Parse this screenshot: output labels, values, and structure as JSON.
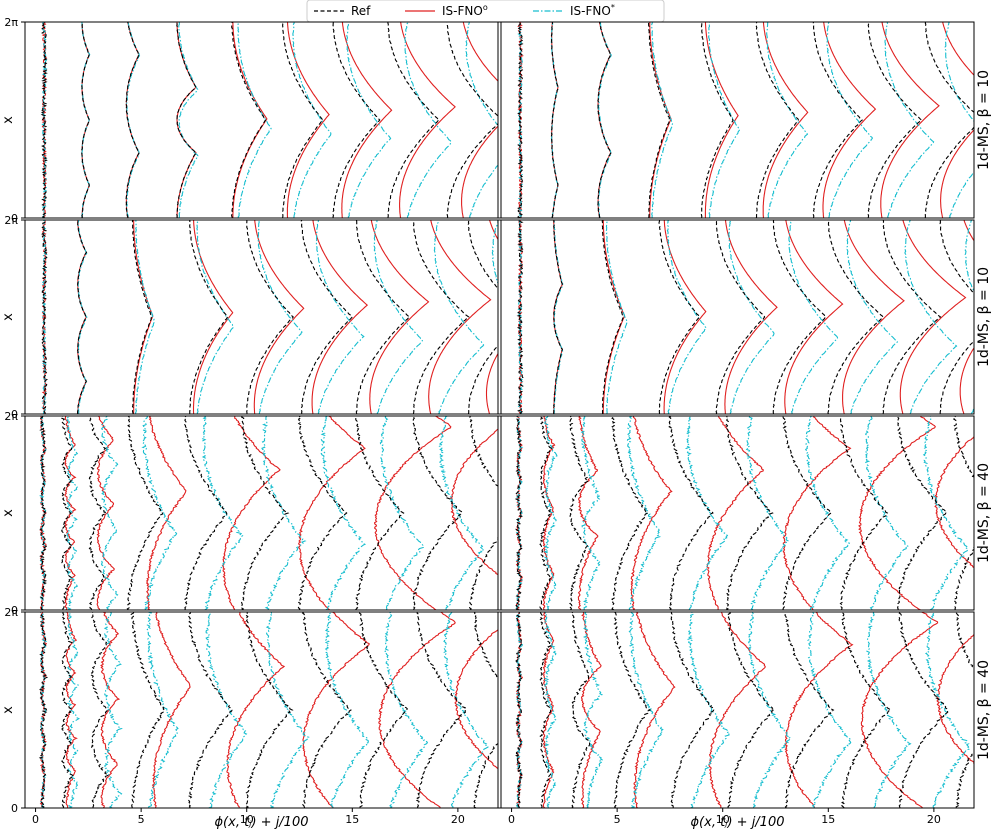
{
  "chart_data": {
    "type": "line",
    "legend": {
      "placement": "top-center",
      "entries": [
        {
          "label": "Ref",
          "sup": "",
          "color": "#000000",
          "dash": "dashed"
        },
        {
          "label": "IS-FNO",
          "sup": "o",
          "color": "#e02020",
          "dash": "solid"
        },
        {
          "label": "IS-FNO",
          "sup": "*",
          "color": "#17becf",
          "dash": "dashdot"
        }
      ]
    },
    "xlabel": "ϕ(x, tⱼ) + j/100",
    "ylabel": "x",
    "y_ticks": [
      "0",
      "2π"
    ],
    "x_ticks": [
      "0",
      "5",
      "10",
      "15",
      "20"
    ],
    "xlim": [
      -0.5,
      21.9
    ],
    "ylim": [
      0,
      6.283
    ],
    "grid": false,
    "columns": 2,
    "rows": [
      {
        "label": "1d-MS, β = 10",
        "beta": 10
      },
      {
        "label": "1d-MS, β = 10",
        "beta": 10
      },
      {
        "label": "1d-MS, β = 40",
        "beta": 40
      },
      {
        "label": "1d-MS, β = 40",
        "beta": 40
      }
    ],
    "panels": [
      {
        "row": 0,
        "col": 0,
        "offsets": [
          0.4,
          2.2,
          4.3,
          6.7,
          9.3,
          11.7,
          14.1,
          16.7,
          19.5
        ],
        "cusps": [
          [
            1,
            5
          ],
          [
            1,
            3,
            5
          ],
          [
            2,
            5
          ],
          [
            2,
            4
          ],
          [
            3
          ],
          [
            3
          ],
          [
            3
          ],
          [
            3
          ],
          [
            3
          ]
        ],
        "amps": [
          0.05,
          0.35,
          0.6,
          0.9,
          1.6,
          1.9,
          2.2,
          2.4,
          2.6
        ],
        "err_red": [
          0,
          0,
          0,
          0,
          0.1,
          0.5,
          0.9,
          1.2,
          1.5
        ],
        "err_cyan": [
          0,
          0,
          0.05,
          0.2,
          0.6,
          1.0,
          1.3,
          1.6,
          1.8
        ]
      },
      {
        "row": 0,
        "col": 1,
        "offsets": [
          0.4,
          1.9,
          4.1,
          6.5,
          9.0,
          11.6,
          14.3,
          16.9,
          19.6
        ],
        "cusps": [
          [
            1,
            5
          ],
          [
            1,
            4
          ],
          [
            2,
            5
          ],
          [
            3
          ],
          [
            3
          ],
          [
            3
          ],
          [
            3
          ],
          [
            3
          ],
          [
            3
          ]
        ],
        "amps": [
          0.05,
          0.3,
          0.6,
          1.0,
          1.5,
          2.0,
          2.3,
          2.5,
          2.7
        ],
        "err_red": [
          0,
          0,
          0,
          0.1,
          0.4,
          0.7,
          1.0,
          1.3,
          1.6
        ],
        "err_cyan": [
          0,
          0,
          0.05,
          0.3,
          0.7,
          1.0,
          1.3,
          1.6,
          1.9
        ]
      },
      {
        "row": 1,
        "col": 0,
        "offsets": [
          0.4,
          2.0,
          4.6,
          7.3,
          10.0,
          12.6,
          15.2,
          17.9,
          20.5
        ],
        "cusps": [
          [
            1,
            5
          ],
          [
            1,
            3,
            5
          ],
          [
            3
          ],
          [
            3
          ],
          [
            3
          ],
          [
            3
          ],
          [
            3
          ],
          [
            3
          ],
          [
            3
          ]
        ],
        "amps": [
          0.05,
          0.4,
          0.9,
          1.8,
          2.2,
          2.4,
          2.5,
          2.6,
          2.8
        ],
        "err_red": [
          0,
          0,
          0.1,
          0.4,
          0.8,
          1.1,
          1.4,
          1.6,
          1.9
        ],
        "err_cyan": [
          0,
          0.05,
          0.3,
          0.7,
          1.1,
          1.4,
          1.7,
          2.0,
          2.3
        ]
      },
      {
        "row": 1,
        "col": 1,
        "offsets": [
          0.4,
          2.0,
          4.3,
          7.0,
          9.7,
          12.4,
          15.0,
          17.6,
          20.3
        ],
        "cusps": [
          [
            1,
            5
          ],
          [
            2,
            4
          ],
          [
            3
          ],
          [
            3
          ],
          [
            3
          ],
          [
            3
          ],
          [
            3
          ],
          [
            3
          ],
          [
            3
          ]
        ],
        "amps": [
          0.05,
          0.4,
          1.0,
          1.9,
          2.3,
          2.5,
          2.6,
          2.7,
          2.8
        ],
        "err_red": [
          0,
          0,
          0.1,
          0.5,
          0.9,
          1.2,
          1.5,
          1.8,
          2.1
        ],
        "err_cyan": [
          0,
          0.05,
          0.4,
          0.8,
          1.2,
          1.5,
          1.8,
          2.1,
          2.4
        ]
      },
      {
        "row": 2,
        "col": 0,
        "offsets": [
          0.3,
          1.3,
          2.6,
          4.4,
          7.1,
          9.8,
          12.5,
          15.2,
          17.9,
          20.6
        ],
        "cusps": [
          [
            1,
            2,
            3,
            4,
            5
          ],
          [
            1,
            2,
            3,
            4,
            5
          ],
          [
            1,
            3,
            5
          ],
          [
            3
          ],
          [
            3
          ],
          [
            3
          ],
          [
            3
          ],
          [
            3
          ],
          [
            3
          ],
          [
            3
          ]
        ],
        "amps": [
          0.15,
          0.4,
          0.7,
          1.6,
          2.0,
          2.1,
          2.2,
          2.2,
          2.3,
          2.4
        ],
        "err_red": [
          0,
          0.3,
          0.8,
          2.0,
          4.0,
          6.0,
          8.0,
          10.0,
          12.0,
          14.0
        ],
        "err_cyan": [
          0,
          0.5,
          1.2,
          1.5,
          1.7,
          2.0,
          2.2,
          2.4,
          2.6,
          2.8
        ]
      },
      {
        "row": 2,
        "col": 1,
        "offsets": [
          0.3,
          1.4,
          2.8,
          4.8,
          7.5,
          10.2,
          12.9,
          15.6,
          18.3,
          21.0
        ],
        "cusps": [
          [
            1,
            2,
            3,
            4,
            5
          ],
          [
            1,
            3,
            5
          ],
          [
            2,
            4
          ],
          [
            3
          ],
          [
            3
          ],
          [
            3
          ],
          [
            3
          ],
          [
            3
          ],
          [
            3
          ],
          [
            3
          ]
        ],
        "amps": [
          0.15,
          0.45,
          0.8,
          1.6,
          2.0,
          2.1,
          2.2,
          2.2,
          2.3,
          2.3
        ],
        "err_red": [
          0,
          0.3,
          0.9,
          2.0,
          4.0,
          6.0,
          8.0,
          10.0,
          12.0,
          14.0
        ],
        "err_cyan": [
          0,
          0.5,
          1.2,
          1.5,
          1.7,
          2.0,
          2.2,
          2.4,
          2.6,
          2.8
        ]
      },
      {
        "row": 3,
        "col": 0,
        "offsets": [
          0.3,
          1.3,
          2.7,
          4.6,
          7.3,
          10.0,
          12.7,
          15.4,
          18.1,
          20.8
        ],
        "cusps": [
          [
            1,
            2,
            3,
            4,
            5
          ],
          [
            1,
            2,
            3,
            4,
            5
          ],
          [
            1,
            3,
            5
          ],
          [
            3
          ],
          [
            3
          ],
          [
            3
          ],
          [
            3
          ],
          [
            3
          ],
          [
            3
          ],
          [
            3
          ]
        ],
        "amps": [
          0.15,
          0.4,
          0.7,
          1.5,
          2.0,
          2.1,
          2.2,
          2.2,
          2.3,
          2.4
        ],
        "err_red": [
          0,
          0.4,
          1.0,
          2.2,
          4.0,
          6.0,
          8.0,
          10.0,
          12.0,
          14.0
        ],
        "err_cyan": [
          0,
          0.6,
          1.3,
          1.5,
          1.7,
          2.0,
          2.2,
          2.4,
          2.6,
          2.8
        ]
      },
      {
        "row": 3,
        "col": 1,
        "offsets": [
          0.3,
          1.4,
          2.9,
          4.9,
          7.6,
          10.3,
          13.0,
          15.7,
          18.4,
          21.1
        ],
        "cusps": [
          [
            1,
            2,
            3,
            4,
            5
          ],
          [
            1,
            3,
            5
          ],
          [
            2,
            4
          ],
          [
            3
          ],
          [
            3
          ],
          [
            3
          ],
          [
            3
          ],
          [
            3
          ],
          [
            3
          ],
          [
            3
          ]
        ],
        "amps": [
          0.15,
          0.45,
          0.8,
          1.6,
          2.0,
          2.1,
          2.2,
          2.2,
          2.3,
          2.3
        ],
        "err_red": [
          0,
          0.3,
          1.0,
          2.1,
          4.0,
          6.0,
          8.0,
          10.0,
          12.0,
          14.0
        ],
        "err_cyan": [
          0,
          0.5,
          1.2,
          1.5,
          1.7,
          2.0,
          2.2,
          2.4,
          2.6,
          2.8
        ]
      }
    ]
  }
}
